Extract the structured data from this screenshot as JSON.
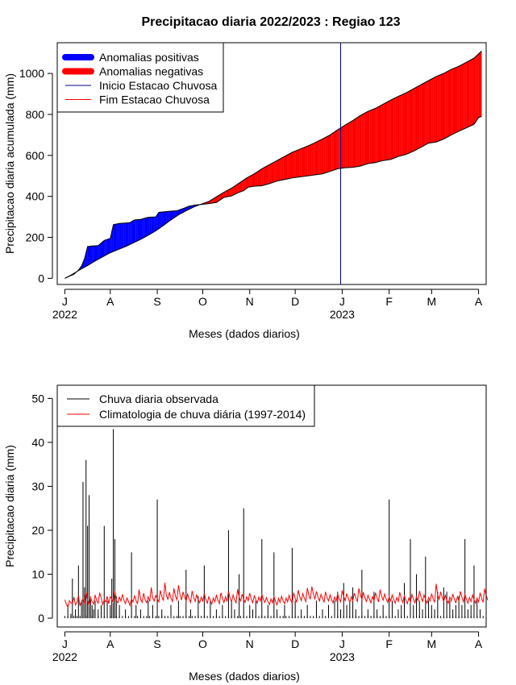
{
  "figure_title": "Precipitacao diaria 2022/2023 : Regiao 123",
  "chart_data": [
    {
      "type": "area",
      "title": "Precipitacao diaria 2022/2023 : Regiao 123",
      "xlabel": "Meses (dados diarios)",
      "ylabel": "Precipitacao diaria acumulada (mm)",
      "ylim": [
        -30,
        1150
      ],
      "yticks": [
        0,
        200,
        400,
        600,
        800,
        1000
      ],
      "x_day_range": [
        -5,
        278
      ],
      "x_ticks": [
        {
          "label": "J",
          "day": 0
        },
        {
          "label": "A",
          "day": 30
        },
        {
          "label": "S",
          "day": 61
        },
        {
          "label": "O",
          "day": 91
        },
        {
          "label": "N",
          "day": 122
        },
        {
          "label": "D",
          "day": 152
        },
        {
          "label": "J",
          "day": 183
        },
        {
          "label": "F",
          "day": 214
        },
        {
          "label": "M",
          "day": 242
        },
        {
          "label": "A",
          "day": 273
        }
      ],
      "year_labels": [
        {
          "label": "2022",
          "day": 0
        },
        {
          "label": "2023",
          "day": 183
        }
      ],
      "rainy_season_start_day": 182,
      "legend_position": "top-left",
      "legend": [
        {
          "label": "Anomalias positivas",
          "color": "#0000ff",
          "style": "thick"
        },
        {
          "label": "Anomalias negativas",
          "color": "#ff0000",
          "style": "thick"
        },
        {
          "label": "Inicio Estacao Chuvosa",
          "color": "#00008b",
          "style": "thin"
        },
        {
          "label": "Fim Estacao Chuvosa",
          "color": "#ff0000",
          "style": "thin"
        }
      ],
      "series": [
        {
          "name": "Precipitacao acumulada observada",
          "points": [
            [
              0,
              0
            ],
            [
              3,
              10
            ],
            [
              6,
              20
            ],
            [
              9,
              40
            ],
            [
              11,
              60
            ],
            [
              13,
              95
            ],
            [
              15,
              155
            ],
            [
              18,
              158
            ],
            [
              22,
              160
            ],
            [
              26,
              185
            ],
            [
              30,
              195
            ],
            [
              32,
              262
            ],
            [
              36,
              268
            ],
            [
              40,
              270
            ],
            [
              43,
              272
            ],
            [
              46,
              285
            ],
            [
              50,
              288
            ],
            [
              55,
              298
            ],
            [
              60,
              300
            ],
            [
              62,
              322
            ],
            [
              66,
              325
            ],
            [
              70,
              328
            ],
            [
              74,
              330
            ],
            [
              78,
              340
            ],
            [
              82,
              352
            ],
            [
              86,
              358
            ],
            [
              90,
              360
            ],
            [
              95,
              365
            ],
            [
              100,
              370
            ],
            [
              105,
              395
            ],
            [
              110,
              402
            ],
            [
              115,
              420
            ],
            [
              118,
              428
            ],
            [
              121,
              445
            ],
            [
              125,
              450
            ],
            [
              130,
              452
            ],
            [
              135,
              462
            ],
            [
              140,
              475
            ],
            [
              145,
              482
            ],
            [
              150,
              490
            ],
            [
              155,
              495
            ],
            [
              160,
              500
            ],
            [
              165,
              505
            ],
            [
              170,
              510
            ],
            [
              175,
              522
            ],
            [
              180,
              535
            ],
            [
              185,
              540
            ],
            [
              190,
              542
            ],
            [
              195,
              548
            ],
            [
              200,
              560
            ],
            [
              205,
              565
            ],
            [
              210,
              575
            ],
            [
              215,
              580
            ],
            [
              220,
              595
            ],
            [
              225,
              605
            ],
            [
              230,
              620
            ],
            [
              235,
              640
            ],
            [
              240,
              660
            ],
            [
              245,
              665
            ],
            [
              250,
              680
            ],
            [
              255,
              700
            ],
            [
              260,
              718
            ],
            [
              265,
              735
            ],
            [
              270,
              752
            ],
            [
              273,
              785
            ],
            [
              275,
              790
            ]
          ]
        },
        {
          "name": "Precipitacao acumulada climatologica",
          "points": [
            [
              0,
              0
            ],
            [
              5,
              20
            ],
            [
              10,
              42
            ],
            [
              15,
              62
            ],
            [
              20,
              85
            ],
            [
              25,
              105
            ],
            [
              30,
              125
            ],
            [
              35,
              140
            ],
            [
              40,
              155
            ],
            [
              45,
              172
            ],
            [
              50,
              190
            ],
            [
              55,
              210
            ],
            [
              60,
              232
            ],
            [
              65,
              258
            ],
            [
              70,
              285
            ],
            [
              75,
              310
            ],
            [
              80,
              330
            ],
            [
              85,
              348
            ],
            [
              90,
              362
            ],
            [
              95,
              375
            ],
            [
              100,
              398
            ],
            [
              105,
              420
            ],
            [
              110,
              440
            ],
            [
              115,
              465
            ],
            [
              120,
              490
            ],
            [
              125,
              510
            ],
            [
              130,
              535
            ],
            [
              135,
              555
            ],
            [
              140,
              575
            ],
            [
              145,
              595
            ],
            [
              150,
              615
            ],
            [
              155,
              630
            ],
            [
              160,
              645
            ],
            [
              165,
              662
            ],
            [
              170,
              680
            ],
            [
              175,
              700
            ],
            [
              180,
              725
            ],
            [
              185,
              748
            ],
            [
              190,
              770
            ],
            [
              195,
              795
            ],
            [
              200,
              815
            ],
            [
              205,
              830
            ],
            [
              210,
              850
            ],
            [
              215,
              870
            ],
            [
              220,
              888
            ],
            [
              225,
              905
            ],
            [
              230,
              925
            ],
            [
              235,
              945
            ],
            [
              240,
              965
            ],
            [
              245,
              985
            ],
            [
              250,
              1000
            ],
            [
              255,
              1020
            ],
            [
              260,
              1035
            ],
            [
              265,
              1055
            ],
            [
              270,
              1075
            ],
            [
              275,
              1110
            ]
          ]
        }
      ]
    },
    {
      "type": "bar",
      "xlabel": "Meses (dados diarios)",
      "ylabel": "Precipitacao diaria (mm)",
      "ylim": [
        -2,
        53
      ],
      "yticks": [
        0,
        10,
        20,
        30,
        40,
        50
      ],
      "x_day_range": [
        -5,
        278
      ],
      "x_ticks": [
        {
          "label": "J",
          "day": 0
        },
        {
          "label": "A",
          "day": 30
        },
        {
          "label": "S",
          "day": 61
        },
        {
          "label": "O",
          "day": 91
        },
        {
          "label": "N",
          "day": 122
        },
        {
          "label": "D",
          "day": 152
        },
        {
          "label": "J",
          "day": 183
        },
        {
          "label": "F",
          "day": 214
        },
        {
          "label": "M",
          "day": 242
        },
        {
          "label": "A",
          "day": 273
        }
      ],
      "year_labels": [
        {
          "label": "2022",
          "day": 0
        },
        {
          "label": "2023",
          "day": 183
        }
      ],
      "legend_position": "top-left",
      "legend": [
        {
          "label": "Chuva diaria observada",
          "color": "#000000"
        },
        {
          "label": "Climatologia de chuva diária (1997-2014)",
          "color": "#ff0000"
        }
      ],
      "series": [
        {
          "name": "Chuva diaria observada",
          "x": [
            2,
            4,
            5,
            7,
            9,
            11,
            12,
            13,
            14,
            15,
            16,
            17,
            18,
            19,
            20,
            22,
            24,
            26,
            28,
            30,
            31,
            32,
            33,
            34,
            36,
            40,
            44,
            47,
            50,
            55,
            58,
            61,
            64,
            70,
            75,
            80,
            83,
            88,
            92,
            96,
            100,
            104,
            108,
            110,
            112,
            115,
            118,
            122,
            124,
            126,
            130,
            134,
            138,
            140,
            145,
            150,
            152,
            156,
            160,
            166,
            170,
            174,
            178,
            180,
            182,
            184,
            186,
            188,
            190,
            192,
            196,
            200,
            204,
            206,
            210,
            214,
            216,
            220,
            222,
            224,
            228,
            230,
            232,
            234,
            236,
            238,
            240,
            242,
            244,
            246,
            250,
            252,
            254,
            256,
            258,
            260,
            262,
            264,
            266,
            268,
            270,
            272,
            274
          ],
          "values": [
            3,
            1,
            9,
            2,
            12,
            4,
            31,
            7,
            36,
            21,
            28,
            5,
            3,
            2,
            4,
            2,
            3,
            21,
            4,
            3,
            9,
            43,
            18,
            5,
            3,
            2,
            15,
            3,
            2,
            4,
            3,
            27,
            2,
            3,
            4,
            11,
            2,
            5,
            12,
            4,
            2,
            3,
            20,
            4,
            2,
            10,
            25,
            3,
            2,
            4,
            18,
            3,
            15,
            2,
            3,
            16,
            4,
            2,
            3,
            4,
            2,
            3,
            4,
            6,
            2,
            8,
            3,
            4,
            7,
            2,
            11,
            2,
            6,
            2,
            3,
            27,
            4,
            2,
            3,
            8,
            18,
            3,
            10,
            4,
            2,
            14,
            4,
            3,
            2,
            6,
            7,
            6,
            4,
            2,
            3,
            5,
            3,
            18,
            2,
            3,
            12,
            4,
            2
          ]
        },
        {
          "name": "Climatologia de chuva diária (1997-2014)",
          "values": [
            4.2,
            3.1,
            2.5,
            4.0,
            3.5,
            3.2,
            4.8,
            3.0,
            3.6,
            5.1,
            2.8,
            3.9,
            4.4,
            3.3,
            6.0,
            4.1,
            2.9,
            4.7,
            3.8,
            3.2,
            5.3,
            4.0,
            3.4,
            5.8,
            4.6,
            3.1,
            4.2,
            3.7,
            5.0,
            3.3,
            4.9,
            4.4,
            3.6,
            6.2,
            4.0,
            3.5,
            4.8,
            3.9,
            5.4,
            4.1,
            3.3,
            4.6,
            3.8,
            2.9,
            4.4,
            3.7,
            5.1,
            4.0,
            3.2,
            6.5,
            4.3,
            3.6,
            5.7,
            4.2,
            3.5,
            4.9,
            3.8,
            7.0,
            4.6,
            3.9,
            5.2,
            4.4,
            3.7,
            6.3,
            4.9,
            4.0,
            8.1,
            5.2,
            4.3,
            5.9,
            4.6,
            3.8,
            6.8,
            5.0,
            4.2,
            7.5,
            5.3,
            4.1,
            6.0,
            4.8,
            3.9,
            5.5,
            4.4,
            3.6,
            6.2,
            4.7,
            3.8,
            5.4,
            4.2,
            3.5,
            4.8,
            3.9,
            5.6,
            4.3,
            3.4,
            4.9,
            4.0,
            3.2,
            4.6,
            3.7,
            5.2,
            4.1,
            3.3,
            5.8,
            4.5,
            3.6,
            4.9,
            3.8,
            6.1,
            4.6,
            3.7,
            5.3,
            4.2,
            3.5,
            6.6,
            4.8,
            3.9,
            5.5,
            4.3,
            3.6,
            4.9,
            4.0,
            5.7,
            4.4,
            3.5,
            5.1,
            4.2,
            3.4,
            4.8,
            3.9,
            5.4,
            4.3,
            3.6,
            4.7,
            3.8,
            3.1,
            4.4,
            3.5,
            4.9,
            3.9,
            3.0,
            4.5,
            3.6,
            5.0,
            4.0,
            3.3,
            4.6,
            3.7,
            5.2,
            4.1,
            3.4,
            5.8,
            4.5,
            3.7,
            6.4,
            4.9,
            4.0,
            5.6,
            4.6,
            3.8,
            6.9,
            5.2,
            4.3,
            7.2,
            5.5,
            4.4,
            6.1,
            4.8,
            3.9,
            5.4,
            4.5,
            3.6,
            6.0,
            4.7,
            3.9,
            5.3,
            4.2,
            3.5,
            4.8,
            3.9,
            5.5,
            4.4,
            3.7,
            6.3,
            4.9,
            4.0,
            5.6,
            4.5,
            3.6,
            4.9,
            4.0,
            5.7,
            4.6,
            3.8,
            6.8,
            5.2,
            4.3,
            5.9,
            4.6,
            3.8,
            5.2,
            4.3,
            3.5,
            4.9,
            4.0,
            5.8,
            4.6,
            3.7,
            6.5,
            5.0,
            4.1,
            5.5,
            4.4,
            3.6,
            4.8,
            3.9,
            5.3,
            4.2,
            3.4,
            4.7,
            3.8,
            5.9,
            4.5,
            3.6,
            5.1,
            4.1,
            3.3,
            4.6,
            3.7,
            5.4,
            4.3,
            3.5,
            4.9,
            4.0,
            6.2,
            4.8,
            3.8,
            5.3,
            4.3,
            3.4,
            4.7,
            3.9,
            5.6,
            4.4,
            3.6,
            7.8,
            5.4,
            4.3,
            6.0,
            4.7,
            3.8,
            5.2,
            4.2,
            3.4,
            4.8,
            3.9,
            5.5,
            4.3,
            3.5,
            4.9,
            4.0,
            6.1,
            4.8,
            3.7,
            5.4,
            4.3,
            3.4,
            4.7,
            3.8,
            5.3,
            4.2,
            3.4,
            4.6,
            3.7,
            5.8,
            4.5,
            3.6,
            6.7,
            5.2,
            4.1
          ]
        }
      ]
    }
  ]
}
